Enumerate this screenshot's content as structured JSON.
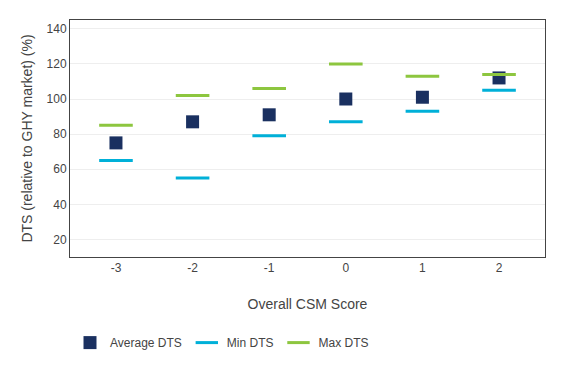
{
  "chart_data": {
    "type": "scatter",
    "x": [
      -3,
      -2,
      -1,
      0,
      1,
      2
    ],
    "series": [
      {
        "name": "Average DTS",
        "color": "#1a3060",
        "marker": "square",
        "values": [
          75,
          87,
          91,
          100,
          101,
          112
        ]
      },
      {
        "name": "Min DTS",
        "color": "#00b0d8",
        "marker": "line-ew",
        "values": [
          65,
          55,
          79,
          87,
          93,
          105
        ]
      },
      {
        "name": "Max DTS",
        "color": "#8dc63f",
        "marker": "line-ew",
        "values": [
          85,
          102,
          106,
          120,
          113,
          114
        ]
      }
    ],
    "xlabel": "Overall CSM Score",
    "ylabel": "DTS (relative to GHY market) (%)",
    "xlim": [
      -3.6,
      2.6
    ],
    "xticks": [
      -3,
      -2,
      -1,
      0,
      1,
      2
    ],
    "ylim": [
      10,
      145
    ],
    "yticks": [
      20,
      40,
      60,
      80,
      100,
      120,
      140
    ],
    "grid": true,
    "legend": "bottom"
  }
}
